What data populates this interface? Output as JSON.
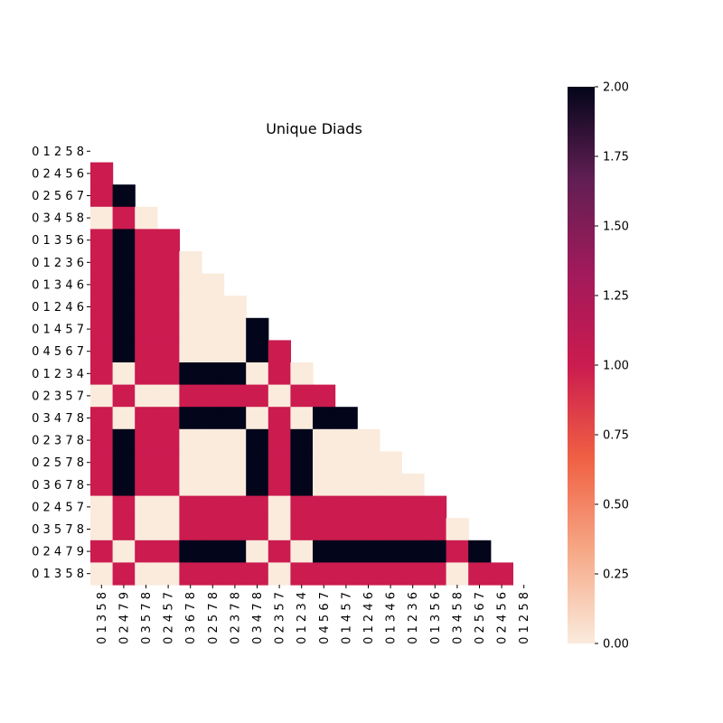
{
  "chart_data": {
    "type": "heatmap",
    "title": "Unique Diads",
    "xlabel": "",
    "ylabel": "",
    "y_labels": [
      "0 1 2 5 8",
      "0 2 4 5 6",
      "0 2 5 6 7",
      "0 3 4 5 8",
      "0 1 3 5 6",
      "0 1 2 3 6",
      "0 1 3 4 6",
      "0 1 2 4 6",
      "0 1 4 5 7",
      "0 4 5 6 7",
      "0 1 2 3 4",
      "0 2 3 5 7",
      "0 3 4 7 8",
      "0 2 3 7 8",
      "0 2 5 7 8",
      "0 3 6 7 8",
      "0 2 4 5 7",
      "0 3 5 7 8",
      "0 2 4 7 9",
      "0 1 3 5 8"
    ],
    "x_labels": [
      "0 1 3 5 8",
      "0 2 4 7 9",
      "0 3 5 7 8",
      "0 2 4 5 7",
      "0 3 6 7 8",
      "0 2 5 7 8",
      "0 2 3 7 8",
      "0 3 4 7 8",
      "0 2 3 5 7",
      "0 1 2 3 4",
      "0 4 5 6 7",
      "0 1 4 5 7",
      "0 1 2 4 6",
      "0 1 3 4 6",
      "0 1 2 3 6",
      "0 1 3 5 6",
      "0 3 4 5 8",
      "0 2 5 6 7",
      "0 2 4 5 6",
      "0 1 2 5 8"
    ],
    "matrix": [
      [],
      [
        1
      ],
      [
        1,
        2
      ],
      [
        0,
        1,
        0
      ],
      [
        1,
        2,
        1,
        1
      ],
      [
        1,
        2,
        1,
        1,
        0
      ],
      [
        1,
        2,
        1,
        1,
        0,
        0
      ],
      [
        1,
        2,
        1,
        1,
        0,
        0,
        0
      ],
      [
        1,
        2,
        1,
        1,
        0,
        0,
        0,
        2
      ],
      [
        1,
        2,
        1,
        1,
        0,
        0,
        0,
        2,
        1
      ],
      [
        1,
        0,
        1,
        1,
        2,
        2,
        2,
        0,
        1,
        0
      ],
      [
        0,
        1,
        0,
        0,
        1,
        1,
        1,
        1,
        0,
        1,
        1
      ],
      [
        1,
        0,
        1,
        1,
        2,
        2,
        2,
        0,
        1,
        0,
        2,
        2
      ],
      [
        1,
        2,
        1,
        1,
        0,
        0,
        0,
        2,
        1,
        2,
        0,
        0,
        0
      ],
      [
        1,
        2,
        1,
        1,
        0,
        0,
        0,
        2,
        1,
        2,
        0,
        0,
        0,
        0
      ],
      [
        1,
        2,
        1,
        1,
        0,
        0,
        0,
        2,
        1,
        2,
        0,
        0,
        0,
        0,
        0
      ],
      [
        0,
        1,
        0,
        0,
        1,
        1,
        1,
        1,
        0,
        1,
        1,
        1,
        1,
        1,
        1,
        1
      ],
      [
        0,
        1,
        0,
        0,
        1,
        1,
        1,
        1,
        0,
        1,
        1,
        1,
        1,
        1,
        1,
        1,
        0
      ],
      [
        1,
        0,
        1,
        1,
        2,
        2,
        2,
        0,
        1,
        0,
        2,
        2,
        2,
        2,
        2,
        2,
        1,
        2
      ],
      [
        0,
        1,
        0,
        0,
        1,
        1,
        1,
        1,
        0,
        1,
        1,
        1,
        1,
        1,
        1,
        1,
        0,
        1,
        1
      ]
    ],
    "colors": {
      "0": "#faebdd",
      "1": "#cb1b4f",
      "2": "#03051a"
    },
    "colorbar": {
      "min": 0.0,
      "max": 2.0,
      "ticks": [
        "0.00",
        "0.25",
        "0.50",
        "0.75",
        "1.00",
        "1.25",
        "1.50",
        "1.75",
        "2.00"
      ],
      "gradient": [
        "#faebdd",
        "#f6a886",
        "#f06043",
        "#cb1b4f",
        "#a11a5b",
        "#611f53",
        "#03051a"
      ]
    },
    "grid": false,
    "legend": "colorbar-right"
  }
}
